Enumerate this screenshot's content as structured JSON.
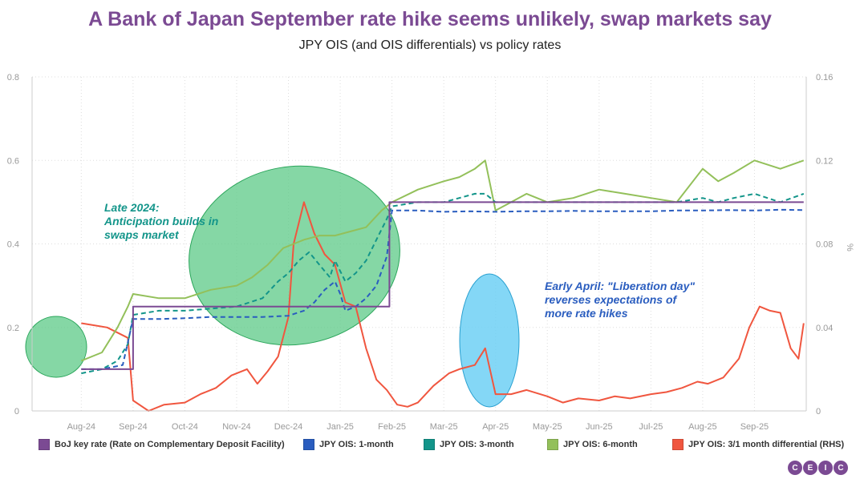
{
  "title": "A Bank of Japan September rate hike seems unlikely, swap markets say",
  "subtitle": "JPY OIS (and OIS differentials) vs policy rates",
  "logo": "CEIC",
  "chart_data": {
    "type": "line",
    "x_ticks": [
      "Aug-24",
      "Sep-24",
      "Oct-24",
      "Nov-24",
      "Dec-24",
      "Jan-25",
      "Feb-25",
      "Mar-25",
      "Apr-25",
      "May-25",
      "Jun-25",
      "Jul-25",
      "Aug-25",
      "Sep-25"
    ],
    "y_left": {
      "ticks": [
        "0",
        "0.2",
        "0.4",
        "0.6",
        "0.8"
      ],
      "ylim": [
        0,
        0.8
      ]
    },
    "y_right": {
      "label": "%",
      "ticks": [
        "0",
        "0.04",
        "0.08",
        "0.12",
        "0.16"
      ],
      "ylim": [
        0,
        0.16
      ]
    },
    "grid": true,
    "legend_position": "bottom",
    "series": [
      {
        "name": "BoJ key rate (Rate on Complementary Deposit Facility)",
        "color": "#7b4a93",
        "axis": "left",
        "step": true,
        "points": [
          [
            0.0,
            0.1
          ],
          [
            1.0,
            0.1
          ],
          [
            1.0,
            0.25
          ],
          [
            5.95,
            0.25
          ],
          [
            5.95,
            0.5
          ],
          [
            13.95,
            0.5
          ]
        ]
      },
      {
        "name": "JPY OIS: 1-month",
        "color": "#2a5dbf",
        "axis": "left",
        "dashed": true,
        "points": [
          [
            0.0,
            0.1
          ],
          [
            0.4,
            0.1
          ],
          [
            0.8,
            0.11
          ],
          [
            1.0,
            0.22
          ],
          [
            1.5,
            0.22
          ],
          [
            2.0,
            0.222
          ],
          [
            2.5,
            0.225
          ],
          [
            3.0,
            0.225
          ],
          [
            3.5,
            0.225
          ],
          [
            4.0,
            0.228
          ],
          [
            4.3,
            0.24
          ],
          [
            4.5,
            0.26
          ],
          [
            4.7,
            0.29
          ],
          [
            4.9,
            0.31
          ],
          [
            5.0,
            0.28
          ],
          [
            5.1,
            0.24
          ],
          [
            5.3,
            0.25
          ],
          [
            5.5,
            0.27
          ],
          [
            5.7,
            0.3
          ],
          [
            5.9,
            0.37
          ],
          [
            6.0,
            0.48
          ],
          [
            6.5,
            0.48
          ],
          [
            7.0,
            0.477
          ],
          [
            7.5,
            0.478
          ],
          [
            8.0,
            0.477
          ],
          [
            8.5,
            0.478
          ],
          [
            9.0,
            0.478
          ],
          [
            9.5,
            0.479
          ],
          [
            10.0,
            0.478
          ],
          [
            10.5,
            0.478
          ],
          [
            11.0,
            0.478
          ],
          [
            11.5,
            0.48
          ],
          [
            12.0,
            0.48
          ],
          [
            12.5,
            0.481
          ],
          [
            13.0,
            0.48
          ],
          [
            13.5,
            0.482
          ],
          [
            13.95,
            0.481
          ]
        ]
      },
      {
        "name": "JPY OIS: 3-month",
        "color": "#13958a",
        "axis": "left",
        "dashed": true,
        "points": [
          [
            0.0,
            0.09
          ],
          [
            0.4,
            0.1
          ],
          [
            0.7,
            0.12
          ],
          [
            0.9,
            0.16
          ],
          [
            1.0,
            0.23
          ],
          [
            1.5,
            0.24
          ],
          [
            2.0,
            0.24
          ],
          [
            2.5,
            0.245
          ],
          [
            3.0,
            0.25
          ],
          [
            3.5,
            0.27
          ],
          [
            3.8,
            0.31
          ],
          [
            4.0,
            0.33
          ],
          [
            4.2,
            0.36
          ],
          [
            4.4,
            0.38
          ],
          [
            4.6,
            0.35
          ],
          [
            4.8,
            0.32
          ],
          [
            4.9,
            0.36
          ],
          [
            5.1,
            0.31
          ],
          [
            5.3,
            0.33
          ],
          [
            5.5,
            0.36
          ],
          [
            5.7,
            0.41
          ],
          [
            5.9,
            0.46
          ],
          [
            6.0,
            0.49
          ],
          [
            6.5,
            0.5
          ],
          [
            7.0,
            0.5
          ],
          [
            7.3,
            0.51
          ],
          [
            7.6,
            0.52
          ],
          [
            7.8,
            0.52
          ],
          [
            8.0,
            0.5
          ],
          [
            8.5,
            0.5
          ],
          [
            9.0,
            0.5
          ],
          [
            9.5,
            0.5
          ],
          [
            10.0,
            0.5
          ],
          [
            10.5,
            0.5
          ],
          [
            11.0,
            0.5
          ],
          [
            11.5,
            0.5
          ],
          [
            12.0,
            0.51
          ],
          [
            12.3,
            0.5
          ],
          [
            12.6,
            0.51
          ],
          [
            13.0,
            0.52
          ],
          [
            13.5,
            0.5
          ],
          [
            13.95,
            0.52
          ]
        ]
      },
      {
        "name": "JPY OIS: 6-month",
        "color": "#93c05a",
        "axis": "left",
        "points": [
          [
            0.0,
            0.12
          ],
          [
            0.4,
            0.14
          ],
          [
            0.7,
            0.2
          ],
          [
            0.9,
            0.25
          ],
          [
            1.0,
            0.28
          ],
          [
            1.5,
            0.27
          ],
          [
            2.0,
            0.27
          ],
          [
            2.5,
            0.29
          ],
          [
            3.0,
            0.3
          ],
          [
            3.3,
            0.32
          ],
          [
            3.6,
            0.35
          ],
          [
            3.9,
            0.39
          ],
          [
            4.1,
            0.4
          ],
          [
            4.3,
            0.41
          ],
          [
            4.6,
            0.42
          ],
          [
            4.9,
            0.42
          ],
          [
            5.2,
            0.43
          ],
          [
            5.5,
            0.44
          ],
          [
            5.8,
            0.48
          ],
          [
            6.0,
            0.5
          ],
          [
            6.5,
            0.53
          ],
          [
            7.0,
            0.55
          ],
          [
            7.3,
            0.56
          ],
          [
            7.6,
            0.58
          ],
          [
            7.8,
            0.6
          ],
          [
            8.0,
            0.48
          ],
          [
            8.3,
            0.5
          ],
          [
            8.6,
            0.52
          ],
          [
            9.0,
            0.5
          ],
          [
            9.5,
            0.51
          ],
          [
            10.0,
            0.53
          ],
          [
            10.5,
            0.52
          ],
          [
            11.0,
            0.51
          ],
          [
            11.5,
            0.5
          ],
          [
            12.0,
            0.58
          ],
          [
            12.3,
            0.55
          ],
          [
            12.6,
            0.57
          ],
          [
            13.0,
            0.6
          ],
          [
            13.5,
            0.58
          ],
          [
            13.95,
            0.6
          ]
        ]
      },
      {
        "name": "JPY OIS: 3/1 month differential (RHS)",
        "color": "#f0563f",
        "axis": "right",
        "points": [
          [
            0.0,
            0.042
          ],
          [
            0.5,
            0.04
          ],
          [
            0.9,
            0.035
          ],
          [
            1.0,
            0.005
          ],
          [
            1.3,
            0.0
          ],
          [
            1.6,
            0.003
          ],
          [
            2.0,
            0.004
          ],
          [
            2.3,
            0.008
          ],
          [
            2.6,
            0.011
          ],
          [
            2.9,
            0.017
          ],
          [
            3.2,
            0.02
          ],
          [
            3.4,
            0.013
          ],
          [
            3.6,
            0.019
          ],
          [
            3.8,
            0.026
          ],
          [
            4.0,
            0.045
          ],
          [
            4.1,
            0.08
          ],
          [
            4.3,
            0.1
          ],
          [
            4.5,
            0.085
          ],
          [
            4.7,
            0.075
          ],
          [
            4.9,
            0.07
          ],
          [
            5.1,
            0.052
          ],
          [
            5.3,
            0.05
          ],
          [
            5.5,
            0.03
          ],
          [
            5.7,
            0.015
          ],
          [
            5.9,
            0.01
          ],
          [
            6.1,
            0.003
          ],
          [
            6.3,
            0.002
          ],
          [
            6.5,
            0.004
          ],
          [
            6.8,
            0.012
          ],
          [
            7.1,
            0.018
          ],
          [
            7.3,
            0.02
          ],
          [
            7.6,
            0.022
          ],
          [
            7.8,
            0.03
          ],
          [
            8.0,
            0.008
          ],
          [
            8.3,
            0.008
          ],
          [
            8.6,
            0.01
          ],
          [
            9.0,
            0.007
          ],
          [
            9.3,
            0.004
          ],
          [
            9.6,
            0.006
          ],
          [
            10.0,
            0.005
          ],
          [
            10.3,
            0.007
          ],
          [
            10.6,
            0.006
          ],
          [
            11.0,
            0.008
          ],
          [
            11.3,
            0.009
          ],
          [
            11.6,
            0.011
          ],
          [
            11.9,
            0.014
          ],
          [
            12.1,
            0.013
          ],
          [
            12.4,
            0.016
          ],
          [
            12.7,
            0.025
          ],
          [
            12.9,
            0.04
          ],
          [
            13.1,
            0.05
          ],
          [
            13.3,
            0.048
          ],
          [
            13.5,
            0.047
          ],
          [
            13.7,
            0.03
          ],
          [
            13.85,
            0.025
          ],
          [
            13.95,
            0.042
          ]
        ]
      }
    ],
    "annotations": [
      {
        "text": [
          "Late 2024:",
          "Anticipation builds in",
          "swaps market"
        ],
        "color": "#13958a"
      },
      {
        "text": [
          "Early April: \"Liberation day\"",
          "reverses expectations of",
          "more rate hikes"
        ],
        "color": "#2a5dbf"
      }
    ],
    "highlight_ellipses": [
      {
        "fill": "#5cc987",
        "stroke": "#2aa55a"
      },
      {
        "fill": "#5cc987",
        "stroke": "#2aa55a"
      },
      {
        "fill": "#6ed0f4",
        "stroke": "#2aa0d0"
      }
    ]
  }
}
